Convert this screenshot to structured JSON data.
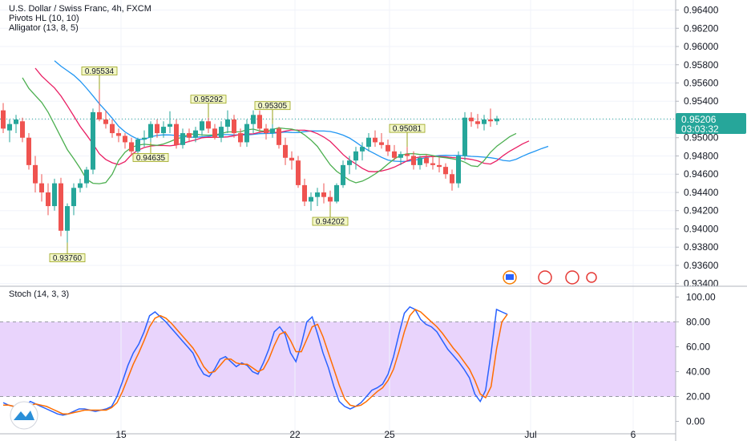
{
  "legend": {
    "symbol": "U.S. Dollar / Swiss Franc, 4h, FXCM",
    "pivots": "Pivots HL (10, 10)",
    "alligator": "Alligator (13, 8, 5)",
    "stoch": "Stoch (14, 3, 3)"
  },
  "price_badge": {
    "price": "0.95206",
    "countdown": "03:03:32"
  },
  "pivot_labels": [
    "0.95534",
    "0.95292",
    "0.95305",
    "0.95081",
    "0.94635",
    "0.94202",
    "0.93760"
  ],
  "colors": {
    "bull": "#26a69a",
    "bear": "#ef5350",
    "jaw": "#2196f3",
    "teeth": "#e91e63",
    "lips": "#4caf50",
    "stoch_k": "#2962ff",
    "stoch_d": "#ff6d00",
    "stoch_band": "#e1c6fb",
    "pivot_box": "#f3f7c8"
  },
  "chart_data": [
    {
      "type": "candlestick",
      "title": "U.S. Dollar / Swiss Franc, 4h, FXCM",
      "x_tick_labels": [
        "15",
        "22",
        "25",
        "Jul",
        "6"
      ],
      "y_tick_labels": [
        "0.96400",
        "0.96200",
        "0.96000",
        "0.95800",
        "0.95600",
        "0.95400",
        "0.95200",
        "0.95000",
        "0.94800",
        "0.94600",
        "0.94400",
        "0.94200",
        "0.94000",
        "0.93800",
        "0.93600",
        "0.93400"
      ],
      "ylim": [
        0.9338,
        0.9651
      ],
      "candles": [
        [
          0.953,
          0.9538,
          0.9505,
          0.951
        ],
        [
          0.9508,
          0.952,
          0.9495,
          0.9515
        ],
        [
          0.9515,
          0.9525,
          0.9505,
          0.952
        ],
        [
          0.9518,
          0.9522,
          0.9495,
          0.95
        ],
        [
          0.95,
          0.9505,
          0.9465,
          0.947
        ],
        [
          0.947,
          0.948,
          0.944,
          0.945
        ],
        [
          0.945,
          0.946,
          0.943,
          0.944
        ],
        [
          0.944,
          0.945,
          0.9415,
          0.9425
        ],
        [
          0.9425,
          0.9455,
          0.942,
          0.945
        ],
        [
          0.945,
          0.9456,
          0.9392,
          0.9398
        ],
        [
          0.9398,
          0.9428,
          0.9385,
          0.9425
        ],
        [
          0.9425,
          0.945,
          0.9415,
          0.9445
        ],
        [
          0.9445,
          0.9455,
          0.944,
          0.945
        ],
        [
          0.945,
          0.9468,
          0.9445,
          0.9465
        ],
        [
          0.9465,
          0.9532,
          0.946,
          0.9528
        ],
        [
          0.9528,
          0.9553,
          0.9518,
          0.952
        ],
        [
          0.952,
          0.953,
          0.951,
          0.9515
        ],
        [
          0.9515,
          0.952,
          0.95,
          0.9505
        ],
        [
          0.9505,
          0.951,
          0.9495,
          0.9502
        ],
        [
          0.9502,
          0.9505,
          0.9488,
          0.9495
        ],
        [
          0.9495,
          0.95,
          0.948,
          0.9485
        ],
        [
          0.9485,
          0.95,
          0.9478,
          0.9498
        ],
        [
          0.9498,
          0.9508,
          0.949,
          0.95
        ],
        [
          0.95,
          0.9518,
          0.9495,
          0.9515
        ],
        [
          0.9515,
          0.952,
          0.95,
          0.9505
        ],
        [
          0.9505,
          0.9518,
          0.95,
          0.9512
        ],
        [
          0.9512,
          0.9529,
          0.9505,
          0.9515
        ],
        [
          0.9515,
          0.952,
          0.9488,
          0.9492
        ],
        [
          0.9492,
          0.951,
          0.9488,
          0.9505
        ],
        [
          0.9505,
          0.951,
          0.9495,
          0.95
        ],
        [
          0.95,
          0.9512,
          0.9495,
          0.9508
        ],
        [
          0.9508,
          0.952,
          0.9502,
          0.9518
        ],
        [
          0.9518,
          0.9522,
          0.9505,
          0.951
        ],
        [
          0.951,
          0.9515,
          0.9498,
          0.95
        ],
        [
          0.95,
          0.9518,
          0.9495,
          0.9512
        ],
        [
          0.9512,
          0.953,
          0.9505,
          0.952
        ],
        [
          0.952,
          0.9525,
          0.95,
          0.9505
        ],
        [
          0.9505,
          0.951,
          0.949,
          0.9495
        ],
        [
          0.9495,
          0.952,
          0.949,
          0.9515
        ],
        [
          0.9515,
          0.953,
          0.9505,
          0.9525
        ],
        [
          0.9525,
          0.953,
          0.9505,
          0.951
        ],
        [
          0.951,
          0.9515,
          0.9498,
          0.9505
        ],
        [
          0.9505,
          0.9515,
          0.95,
          0.951
        ],
        [
          0.951,
          0.9512,
          0.9488,
          0.9492
        ],
        [
          0.9492,
          0.95,
          0.947,
          0.9478
        ],
        [
          0.9478,
          0.9485,
          0.9465,
          0.9475
        ],
        [
          0.9475,
          0.948,
          0.9445,
          0.9448
        ],
        [
          0.9448,
          0.9455,
          0.9425,
          0.943
        ],
        [
          0.943,
          0.944,
          0.942,
          0.9435
        ],
        [
          0.9435,
          0.9445,
          0.9425,
          0.944
        ],
        [
          0.944,
          0.945,
          0.9428,
          0.9435
        ],
        [
          0.9435,
          0.9442,
          0.9425,
          0.943
        ],
        [
          0.943,
          0.945,
          0.9428,
          0.9448
        ],
        [
          0.9448,
          0.9475,
          0.9445,
          0.947
        ],
        [
          0.947,
          0.948,
          0.946,
          0.9475
        ],
        [
          0.9475,
          0.949,
          0.9465,
          0.9485
        ],
        [
          0.9485,
          0.9495,
          0.9475,
          0.949
        ],
        [
          0.949,
          0.9505,
          0.9485,
          0.95
        ],
        [
          0.95,
          0.9508,
          0.949,
          0.9495
        ],
        [
          0.9495,
          0.9505,
          0.9488,
          0.9492
        ],
        [
          0.9492,
          0.9498,
          0.948,
          0.9485
        ],
        [
          0.9485,
          0.9492,
          0.9475,
          0.9478
        ],
        [
          0.9478,
          0.9485,
          0.947,
          0.9482
        ],
        [
          0.9482,
          0.949,
          0.9475,
          0.948
        ],
        [
          0.948,
          0.9485,
          0.9465,
          0.947
        ],
        [
          0.947,
          0.948,
          0.9465,
          0.9478
        ],
        [
          0.9478,
          0.9482,
          0.9468,
          0.9472
        ],
        [
          0.9472,
          0.948,
          0.9465,
          0.947
        ],
        [
          0.947,
          0.9478,
          0.9462,
          0.9468
        ],
        [
          0.9468,
          0.9472,
          0.9455,
          0.946
        ],
        [
          0.946,
          0.9465,
          0.9442,
          0.945
        ],
        [
          0.945,
          0.9485,
          0.9445,
          0.948
        ],
        [
          0.948,
          0.9528,
          0.9475,
          0.9522
        ],
        [
          0.9522,
          0.9528,
          0.9512,
          0.9518
        ],
        [
          0.9518,
          0.9526,
          0.951,
          0.9515
        ],
        [
          0.9515,
          0.9525,
          0.9508,
          0.952
        ],
        [
          0.952,
          0.9532,
          0.9512,
          0.9518
        ],
        [
          0.9518,
          0.9524,
          0.9514,
          0.9521
        ]
      ]
    },
    {
      "type": "line",
      "title": "Stoch (14, 3, 3)",
      "y_tick_labels": [
        "100.00",
        "80.00",
        "60.00",
        "40.00",
        "20.00",
        "0.00"
      ],
      "ylim": [
        -10,
        108
      ],
      "band": [
        20,
        80
      ],
      "series": [
        {
          "values": [
            15,
            13,
            12,
            10,
            12,
            16,
            14,
            12,
            10,
            8,
            6,
            5,
            6,
            8,
            10,
            10,
            9,
            8,
            9,
            10,
            12,
            20,
            32,
            45,
            55,
            62,
            72,
            85,
            88,
            84,
            80,
            75,
            70,
            65,
            60,
            55,
            45,
            38,
            36,
            42,
            50,
            52,
            48,
            44,
            47,
            45,
            40,
            38,
            47,
            58,
            72,
            76,
            70,
            55,
            48,
            62,
            80,
            84,
            70,
            55,
            43,
            28,
            16,
            12,
            10,
            12,
            15,
            20,
            25,
            27,
            30,
            38,
            52,
            70,
            87,
            92,
            90,
            82,
            78,
            76,
            72,
            65,
            58,
            53,
            48,
            42,
            35,
            22,
            16,
            25,
            55,
            90,
            88,
            86
          ]
        },
        {
          "values": [
            13,
            13,
            12,
            11,
            11,
            13,
            14,
            13,
            12,
            10,
            8,
            6,
            6,
            7,
            8,
            9,
            9,
            9,
            9,
            9,
            11,
            15,
            24,
            35,
            46,
            55,
            65,
            76,
            83,
            85,
            83,
            79,
            74,
            69,
            64,
            59,
            52,
            44,
            39,
            40,
            45,
            50,
            50,
            47,
            46,
            46,
            43,
            40,
            42,
            50,
            61,
            70,
            72,
            65,
            56,
            56,
            66,
            76,
            78,
            68,
            55,
            42,
            29,
            18,
            13,
            12,
            13,
            16,
            20,
            24,
            27,
            33,
            42,
            56,
            72,
            85,
            90,
            88,
            84,
            80,
            76,
            71,
            65,
            59,
            54,
            48,
            42,
            33,
            22,
            19,
            28,
            58,
            80,
            86
          ]
        }
      ]
    }
  ]
}
